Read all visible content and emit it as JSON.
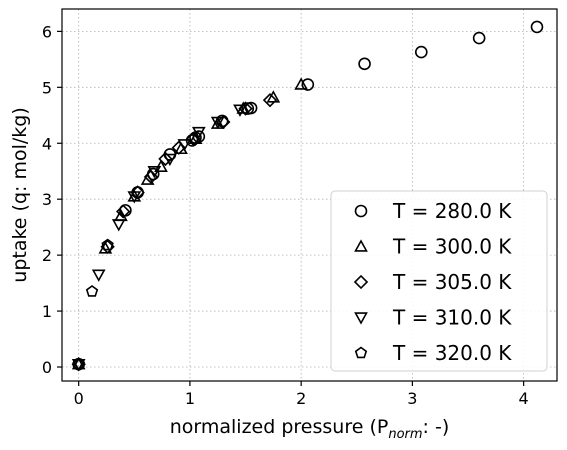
{
  "chart_data": {
    "type": "scatter",
    "title": "",
    "xlabel": "normalized pressure (P",
    "xlabel_sub": "norm",
    "xlabel_tail": ": -)",
    "ylabel": "uptake (q: mol/kg)",
    "xlim": [
      -0.15,
      4.3
    ],
    "ylim": [
      -0.25,
      6.4
    ],
    "xticks": [
      0,
      1,
      2,
      3,
      4
    ],
    "yticks": [
      0,
      1,
      2,
      3,
      4,
      5,
      6
    ],
    "xtick_labels": [
      "0",
      "1",
      "2",
      "3",
      "4"
    ],
    "ytick_labels": [
      "0",
      "1",
      "2",
      "3",
      "4",
      "5",
      "6"
    ],
    "grid": true,
    "legend_position": "lower-right",
    "series": [
      {
        "name": "T = 280.0 K",
        "marker": "circle",
        "x": [
          0.0,
          0.42,
          0.53,
          0.67,
          0.82,
          1.02,
          1.05,
          1.08,
          1.29,
          1.52,
          1.55,
          2.06,
          2.57,
          3.08,
          3.6,
          4.12
        ],
        "y": [
          0.05,
          2.8,
          3.12,
          3.45,
          3.8,
          4.05,
          4.1,
          4.12,
          4.4,
          4.62,
          4.63,
          5.05,
          5.42,
          5.63,
          5.88,
          6.08
        ]
      },
      {
        "name": "T = 300.0 K",
        "marker": "triangle-up",
        "x": [
          0.0,
          0.24,
          0.38,
          0.5,
          0.62,
          0.74,
          0.92,
          1.05,
          1.25,
          1.48,
          1.75,
          2.0
        ],
        "y": [
          0.05,
          2.12,
          2.7,
          3.05,
          3.35,
          3.58,
          3.9,
          4.08,
          4.35,
          4.62,
          4.82,
          5.05
        ]
      },
      {
        "name": "T = 305.0 K",
        "marker": "diamond",
        "x": [
          0.0,
          0.26,
          0.4,
          0.53,
          0.65,
          0.78,
          0.9,
          1.03,
          1.3,
          1.5,
          1.72
        ],
        "y": [
          0.05,
          2.15,
          2.78,
          3.12,
          3.4,
          3.72,
          3.92,
          4.08,
          4.38,
          4.62,
          4.77
        ]
      },
      {
        "name": "T = 310.0 K",
        "marker": "triangle-down",
        "x": [
          0.0,
          0.18,
          0.36,
          0.5,
          0.68,
          0.82,
          0.95,
          1.08,
          1.25,
          1.45
        ],
        "y": [
          0.05,
          1.65,
          2.55,
          3.05,
          3.5,
          3.72,
          3.98,
          4.2,
          4.38,
          4.6
        ]
      },
      {
        "name": "T = 320.0 K",
        "marker": "pentagon",
        "x": [
          0.0,
          0.12,
          0.26
        ],
        "y": [
          0.05,
          1.35,
          2.18
        ]
      }
    ]
  }
}
